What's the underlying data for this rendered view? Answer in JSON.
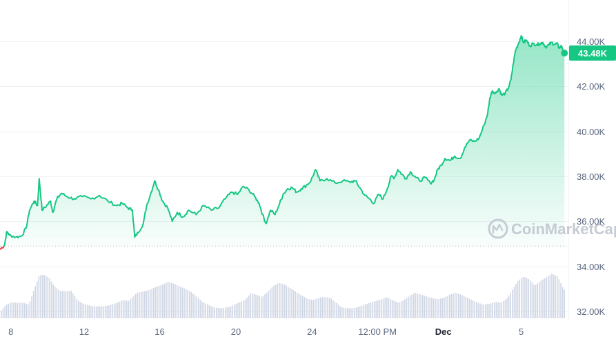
{
  "chart_data": {
    "type": "line",
    "x_axis": {
      "ticks": [
        {
          "label": "8",
          "bold": false,
          "pos": 0.005
        },
        {
          "label": "12",
          "bold": false,
          "pos": 0.148
        },
        {
          "label": "16",
          "bold": false,
          "pos": 0.281
        },
        {
          "label": "20",
          "bold": false,
          "pos": 0.415
        },
        {
          "label": "24",
          "bold": false,
          "pos": 0.549
        },
        {
          "label": "12:00 PM",
          "bold": false,
          "pos": 0.664
        },
        {
          "label": "Dec",
          "bold": true,
          "pos": 0.78
        },
        {
          "label": "5",
          "bold": false,
          "pos": 0.917
        }
      ]
    },
    "y_axis": {
      "ylim": [
        31550,
        45300
      ],
      "ticks": [
        {
          "value": 32000,
          "label": "32.00K"
        },
        {
          "value": 34000,
          "label": "34.00K"
        },
        {
          "value": 36000,
          "label": "36.00K"
        },
        {
          "value": 38000,
          "label": "38.00K"
        },
        {
          "value": 40000,
          "label": "40.00K"
        },
        {
          "value": 42000,
          "label": "42.00K"
        },
        {
          "value": 44000,
          "label": "44.00K"
        }
      ],
      "grid": true,
      "side": "right"
    },
    "baseline_value": 34900,
    "current_price": {
      "value": 43480,
      "label": "43.48K"
    },
    "colors": {
      "up": "#16c784",
      "down": "#ea3943",
      "volume": "#cfd6e4",
      "grid": "#eff2f5",
      "axis_text": "#58667e",
      "baseline": "#a6b0c3"
    },
    "series": [
      {
        "kind": "price",
        "points": [
          [
            0.0,
            34750
          ],
          [
            0.008,
            34950
          ],
          [
            0.012,
            35550
          ],
          [
            0.016,
            35400
          ],
          [
            0.028,
            35300
          ],
          [
            0.038,
            35350
          ],
          [
            0.046,
            35700
          ],
          [
            0.052,
            36500
          ],
          [
            0.06,
            36900
          ],
          [
            0.066,
            36700
          ],
          [
            0.069,
            37900
          ],
          [
            0.074,
            36500
          ],
          [
            0.082,
            36700
          ],
          [
            0.089,
            36900
          ],
          [
            0.093,
            36400
          ],
          [
            0.1,
            37000
          ],
          [
            0.108,
            37250
          ],
          [
            0.118,
            37100
          ],
          [
            0.13,
            37000
          ],
          [
            0.145,
            37100
          ],
          [
            0.16,
            37000
          ],
          [
            0.175,
            37150
          ],
          [
            0.19,
            36900
          ],
          [
            0.205,
            36700
          ],
          [
            0.215,
            36800
          ],
          [
            0.225,
            36600
          ],
          [
            0.233,
            36500
          ],
          [
            0.237,
            35300
          ],
          [
            0.243,
            35500
          ],
          [
            0.252,
            35900
          ],
          [
            0.258,
            36700
          ],
          [
            0.266,
            37300
          ],
          [
            0.272,
            37800
          ],
          [
            0.279,
            37400
          ],
          [
            0.286,
            36900
          ],
          [
            0.295,
            36600
          ],
          [
            0.303,
            36000
          ],
          [
            0.312,
            36400
          ],
          [
            0.322,
            36200
          ],
          [
            0.332,
            36500
          ],
          [
            0.345,
            36300
          ],
          [
            0.358,
            36700
          ],
          [
            0.372,
            36500
          ],
          [
            0.385,
            36600
          ],
          [
            0.396,
            37000
          ],
          [
            0.408,
            37300
          ],
          [
            0.418,
            37200
          ],
          [
            0.428,
            37550
          ],
          [
            0.438,
            37400
          ],
          [
            0.448,
            37100
          ],
          [
            0.456,
            36800
          ],
          [
            0.462,
            36300
          ],
          [
            0.468,
            35900
          ],
          [
            0.476,
            36500
          ],
          [
            0.484,
            36300
          ],
          [
            0.492,
            36800
          ],
          [
            0.498,
            37200
          ],
          [
            0.506,
            37450
          ],
          [
            0.514,
            37500
          ],
          [
            0.522,
            37300
          ],
          [
            0.53,
            37450
          ],
          [
            0.539,
            37600
          ],
          [
            0.547,
            37800
          ],
          [
            0.555,
            38300
          ],
          [
            0.563,
            37800
          ],
          [
            0.575,
            37900
          ],
          [
            0.59,
            37700
          ],
          [
            0.603,
            37800
          ],
          [
            0.615,
            37750
          ],
          [
            0.625,
            37800
          ],
          [
            0.633,
            37500
          ],
          [
            0.642,
            37150
          ],
          [
            0.65,
            37000
          ],
          [
            0.658,
            36800
          ],
          [
            0.666,
            37200
          ],
          [
            0.674,
            37000
          ],
          [
            0.682,
            37500
          ],
          [
            0.688,
            38000
          ],
          [
            0.694,
            37950
          ],
          [
            0.7,
            38300
          ],
          [
            0.707,
            38100
          ],
          [
            0.714,
            37900
          ],
          [
            0.722,
            38200
          ],
          [
            0.73,
            38000
          ],
          [
            0.738,
            37800
          ],
          [
            0.748,
            37950
          ],
          [
            0.757,
            37700
          ],
          [
            0.764,
            37850
          ],
          [
            0.77,
            38300
          ],
          [
            0.776,
            38500
          ],
          [
            0.783,
            38800
          ],
          [
            0.792,
            38700
          ],
          [
            0.8,
            38900
          ],
          [
            0.81,
            38800
          ],
          [
            0.818,
            39300
          ],
          [
            0.826,
            39600
          ],
          [
            0.835,
            39550
          ],
          [
            0.843,
            39700
          ],
          [
            0.852,
            40300
          ],
          [
            0.858,
            40800
          ],
          [
            0.862,
            41500
          ],
          [
            0.866,
            41800
          ],
          [
            0.872,
            41700
          ],
          [
            0.878,
            41900
          ],
          [
            0.883,
            41600
          ],
          [
            0.889,
            41700
          ],
          [
            0.894,
            41900
          ],
          [
            0.899,
            42300
          ],
          [
            0.903,
            43000
          ],
          [
            0.907,
            43600
          ],
          [
            0.912,
            43900
          ],
          [
            0.917,
            44250
          ],
          [
            0.921,
            43950
          ],
          [
            0.926,
            44050
          ],
          [
            0.932,
            43800
          ],
          [
            0.938,
            43900
          ],
          [
            0.944,
            43850
          ],
          [
            0.95,
            43900
          ],
          [
            0.955,
            43950
          ],
          [
            0.96,
            43750
          ],
          [
            0.966,
            43850
          ],
          [
            0.971,
            43950
          ],
          [
            0.975,
            43850
          ],
          [
            0.98,
            43900
          ],
          [
            0.984,
            43700
          ],
          [
            0.988,
            43800
          ],
          [
            0.993,
            43480
          ]
        ]
      },
      {
        "kind": "volume",
        "points": [
          [
            0.0,
            0.15
          ],
          [
            0.01,
            0.3
          ],
          [
            0.02,
            0.35
          ],
          [
            0.03,
            0.34
          ],
          [
            0.04,
            0.34
          ],
          [
            0.05,
            0.3
          ],
          [
            0.058,
            0.6
          ],
          [
            0.068,
            0.94
          ],
          [
            0.075,
            0.96
          ],
          [
            0.085,
            0.9
          ],
          [
            0.095,
            0.7
          ],
          [
            0.105,
            0.6
          ],
          [
            0.115,
            0.6
          ],
          [
            0.125,
            0.6
          ],
          [
            0.135,
            0.4
          ],
          [
            0.145,
            0.32
          ],
          [
            0.16,
            0.27
          ],
          [
            0.175,
            0.26
          ],
          [
            0.19,
            0.28
          ],
          [
            0.205,
            0.34
          ],
          [
            0.215,
            0.4
          ],
          [
            0.225,
            0.38
          ],
          [
            0.24,
            0.56
          ],
          [
            0.255,
            0.6
          ],
          [
            0.265,
            0.64
          ],
          [
            0.275,
            0.7
          ],
          [
            0.285,
            0.74
          ],
          [
            0.295,
            0.8
          ],
          [
            0.305,
            0.76
          ],
          [
            0.315,
            0.7
          ],
          [
            0.325,
            0.65
          ],
          [
            0.335,
            0.58
          ],
          [
            0.345,
            0.48
          ],
          [
            0.355,
            0.36
          ],
          [
            0.365,
            0.3
          ],
          [
            0.375,
            0.24
          ],
          [
            0.39,
            0.22
          ],
          [
            0.405,
            0.26
          ],
          [
            0.42,
            0.35
          ],
          [
            0.43,
            0.4
          ],
          [
            0.44,
            0.55
          ],
          [
            0.45,
            0.52
          ],
          [
            0.46,
            0.47
          ],
          [
            0.47,
            0.58
          ],
          [
            0.48,
            0.71
          ],
          [
            0.49,
            0.78
          ],
          [
            0.5,
            0.74
          ],
          [
            0.51,
            0.66
          ],
          [
            0.52,
            0.58
          ],
          [
            0.53,
            0.5
          ],
          [
            0.54,
            0.43
          ],
          [
            0.55,
            0.4
          ],
          [
            0.56,
            0.45
          ],
          [
            0.57,
            0.47
          ],
          [
            0.58,
            0.45
          ],
          [
            0.59,
            0.35
          ],
          [
            0.6,
            0.24
          ],
          [
            0.61,
            0.22
          ],
          [
            0.62,
            0.22
          ],
          [
            0.63,
            0.25
          ],
          [
            0.64,
            0.3
          ],
          [
            0.65,
            0.34
          ],
          [
            0.66,
            0.38
          ],
          [
            0.67,
            0.42
          ],
          [
            0.68,
            0.46
          ],
          [
            0.69,
            0.4
          ],
          [
            0.7,
            0.34
          ],
          [
            0.71,
            0.4
          ],
          [
            0.72,
            0.5
          ],
          [
            0.73,
            0.56
          ],
          [
            0.74,
            0.52
          ],
          [
            0.75,
            0.48
          ],
          [
            0.76,
            0.44
          ],
          [
            0.77,
            0.42
          ],
          [
            0.78,
            0.45
          ],
          [
            0.79,
            0.52
          ],
          [
            0.8,
            0.56
          ],
          [
            0.81,
            0.52
          ],
          [
            0.82,
            0.46
          ],
          [
            0.83,
            0.4
          ],
          [
            0.84,
            0.34
          ],
          [
            0.85,
            0.3
          ],
          [
            0.86,
            0.32
          ],
          [
            0.87,
            0.36
          ],
          [
            0.88,
            0.34
          ],
          [
            0.89,
            0.42
          ],
          [
            0.9,
            0.62
          ],
          [
            0.91,
            0.82
          ],
          [
            0.92,
            0.92
          ],
          [
            0.93,
            0.86
          ],
          [
            0.94,
            0.72
          ],
          [
            0.95,
            0.82
          ],
          [
            0.96,
            0.9
          ],
          [
            0.97,
            0.98
          ],
          [
            0.98,
            0.92
          ],
          [
            0.99,
            0.66
          ],
          [
            0.993,
            0.62
          ]
        ]
      }
    ]
  },
  "watermark": {
    "text": "CoinMarketCap",
    "icon": "coinmarketcap-logo-icon"
  }
}
